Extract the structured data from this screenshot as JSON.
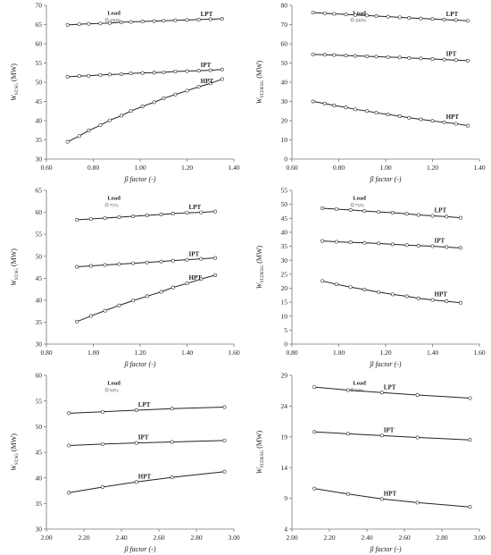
{
  "chart_data": [
    {
      "id": "p1",
      "type": "line",
      "xlabel": "β factor (-)",
      "ylabel_main": "W",
      "ylabel_sub": "ST,SG",
      "ylabel_unit": "(MW)",
      "xlim": [
        0.6,
        1.4
      ],
      "ylim": [
        30,
        70
      ],
      "xticks": [
        "0.60",
        "0.80",
        "1.00",
        "1.20",
        "1.40"
      ],
      "yticks": [
        "30",
        "35",
        "40",
        "45",
        "50",
        "55",
        "60",
        "65",
        "70"
      ],
      "legend": {
        "title": "Load",
        "value": "100%"
      },
      "series": [
        {
          "name": "LPT",
          "x": [
            0.69,
            0.74,
            0.78,
            0.83,
            0.87,
            0.92,
            0.96,
            1.01,
            1.06,
            1.1,
            1.15,
            1.2,
            1.25,
            1.3,
            1.35
          ],
          "y": [
            64.9,
            65.1,
            65.2,
            65.3,
            65.4,
            65.6,
            65.7,
            65.8,
            65.9,
            66.0,
            66.1,
            66.2,
            66.3,
            66.4,
            66.5
          ]
        },
        {
          "name": "IPT",
          "x": [
            0.69,
            0.74,
            0.78,
            0.83,
            0.87,
            0.92,
            0.96,
            1.01,
            1.06,
            1.1,
            1.15,
            1.2,
            1.25,
            1.3,
            1.35
          ],
          "y": [
            51.4,
            51.6,
            51.7,
            51.9,
            52.0,
            52.1,
            52.3,
            52.4,
            52.5,
            52.6,
            52.8,
            52.9,
            53.0,
            53.1,
            53.3
          ]
        },
        {
          "name": "HPT",
          "x": [
            0.69,
            0.74,
            0.78,
            0.83,
            0.87,
            0.92,
            0.96,
            1.01,
            1.06,
            1.1,
            1.15,
            1.2,
            1.25,
            1.3,
            1.35
          ],
          "y": [
            34.5,
            36.0,
            37.4,
            38.8,
            40.1,
            41.3,
            42.5,
            43.7,
            44.8,
            45.8,
            46.8,
            47.8,
            48.8,
            49.7,
            50.8
          ]
        }
      ]
    },
    {
      "id": "p2",
      "type": "line",
      "xlabel": "β factor (-)",
      "ylabel_main": "W",
      "ylabel_sub": "ST,DESG",
      "ylabel_unit": "(MW)",
      "xlim": [
        0.6,
        1.4
      ],
      "ylim": [
        0,
        80
      ],
      "xticks": [
        "0.60",
        "0.80",
        "1.00",
        "1.20",
        "1.40"
      ],
      "yticks": [
        "0",
        "10",
        "20",
        "30",
        "40",
        "50",
        "60",
        "70",
        "80"
      ],
      "legend": {
        "title": "Load",
        "value": "100%"
      },
      "series": [
        {
          "name": "LPT",
          "x": [
            0.69,
            0.74,
            0.78,
            0.83,
            0.87,
            0.92,
            0.96,
            1.01,
            1.06,
            1.1,
            1.15,
            1.2,
            1.25,
            1.3,
            1.35
          ],
          "y": [
            76.3,
            75.9,
            75.6,
            75.3,
            75.0,
            74.7,
            74.4,
            74.1,
            73.8,
            73.5,
            73.2,
            72.9,
            72.6,
            72.3,
            72.0
          ]
        },
        {
          "name": "IPT",
          "x": [
            0.69,
            0.74,
            0.78,
            0.83,
            0.87,
            0.92,
            0.96,
            1.01,
            1.06,
            1.1,
            1.15,
            1.2,
            1.25,
            1.3,
            1.35
          ],
          "y": [
            54.5,
            54.3,
            54.1,
            53.9,
            53.7,
            53.5,
            53.3,
            53.1,
            52.9,
            52.6,
            52.4,
            52.1,
            51.8,
            51.5,
            51.2
          ]
        },
        {
          "name": "HPT",
          "x": [
            0.69,
            0.74,
            0.78,
            0.83,
            0.87,
            0.92,
            0.96,
            1.01,
            1.06,
            1.1,
            1.15,
            1.2,
            1.25,
            1.3,
            1.35
          ],
          "y": [
            30.0,
            28.9,
            27.9,
            26.9,
            25.9,
            25.0,
            24.1,
            23.2,
            22.3,
            21.5,
            20.7,
            19.9,
            19.1,
            18.4,
            17.4
          ]
        }
      ]
    },
    {
      "id": "p3",
      "type": "line",
      "xlabel": "β factor (-)",
      "ylabel_main": "W",
      "ylabel_sub": "ST,SG",
      "ylabel_unit": "(MW)",
      "xlim": [
        0.8,
        1.6
      ],
      "ylim": [
        30,
        65
      ],
      "xticks": [
        "0.80",
        "1.00",
        "1.20",
        "1.40",
        "1.60"
      ],
      "yticks": [
        "30",
        "35",
        "40",
        "45",
        "50",
        "55",
        "60",
        "65"
      ],
      "legend": {
        "title": "Load",
        "value": "75%"
      },
      "series": [
        {
          "name": "LPT",
          "x": [
            0.93,
            0.99,
            1.05,
            1.11,
            1.17,
            1.23,
            1.29,
            1.34,
            1.4,
            1.46,
            1.52
          ],
          "y": [
            58.3,
            58.5,
            58.7,
            58.9,
            59.1,
            59.3,
            59.5,
            59.7,
            59.9,
            60.0,
            60.2
          ]
        },
        {
          "name": "IPT",
          "x": [
            0.93,
            0.99,
            1.05,
            1.11,
            1.17,
            1.23,
            1.29,
            1.34,
            1.4,
            1.46,
            1.52
          ],
          "y": [
            47.6,
            47.8,
            48.0,
            48.2,
            48.4,
            48.6,
            48.8,
            49.0,
            49.2,
            49.4,
            49.6
          ]
        },
        {
          "name": "HPT",
          "x": [
            0.93,
            0.99,
            1.05,
            1.11,
            1.17,
            1.23,
            1.29,
            1.34,
            1.4,
            1.46,
            1.52
          ],
          "y": [
            35.1,
            36.4,
            37.6,
            38.8,
            39.9,
            40.9,
            41.9,
            42.9,
            43.8,
            44.8,
            45.7
          ]
        }
      ]
    },
    {
      "id": "p4",
      "type": "line",
      "xlabel": "β factor (-)",
      "ylabel_main": "W",
      "ylabel_sub": "ST,DESG",
      "ylabel_unit": "(MW)",
      "xlim": [
        0.8,
        1.6
      ],
      "ylim": [
        0,
        55
      ],
      "xticks": [
        "0.80",
        "1.00",
        "1.20",
        "1.40",
        "1.60"
      ],
      "yticks": [
        "0",
        "5",
        "10",
        "15",
        "20",
        "25",
        "30",
        "35",
        "40",
        "45",
        "50",
        "55"
      ],
      "legend": {
        "title": "Load",
        "value": "75%"
      },
      "series": [
        {
          "name": "LPT",
          "x": [
            0.93,
            0.99,
            1.05,
            1.11,
            1.17,
            1.23,
            1.29,
            1.34,
            1.4,
            1.46,
            1.52
          ],
          "y": [
            48.6,
            48.3,
            48.0,
            47.6,
            47.3,
            47.0,
            46.6,
            46.2,
            45.9,
            45.6,
            45.2
          ]
        },
        {
          "name": "IPT",
          "x": [
            0.93,
            0.99,
            1.05,
            1.11,
            1.17,
            1.23,
            1.29,
            1.34,
            1.4,
            1.46,
            1.52
          ],
          "y": [
            36.9,
            36.6,
            36.4,
            36.2,
            36.0,
            35.7,
            35.4,
            35.2,
            35.0,
            34.7,
            34.4
          ]
        },
        {
          "name": "HPT",
          "x": [
            0.93,
            0.99,
            1.05,
            1.11,
            1.17,
            1.23,
            1.29,
            1.34,
            1.4,
            1.46,
            1.52
          ],
          "y": [
            22.6,
            21.4,
            20.4,
            19.5,
            18.6,
            17.8,
            17.1,
            16.4,
            15.8,
            15.3,
            14.8
          ]
        }
      ]
    },
    {
      "id": "p5",
      "type": "line",
      "xlabel": "β factor (-)",
      "ylabel_main": "W",
      "ylabel_sub": "ST,SG",
      "ylabel_unit": "(MW)",
      "xlim": [
        2.0,
        3.0
      ],
      "ylim": [
        30,
        60
      ],
      "xticks": [
        "2.00",
        "2.20",
        "2.40",
        "2.60",
        "2.80",
        "3.00"
      ],
      "yticks": [
        "30",
        "35",
        "40",
        "45",
        "50",
        "55",
        "60"
      ],
      "legend": {
        "title": "Load",
        "value": "50%"
      },
      "series": [
        {
          "name": "LPT",
          "x": [
            2.12,
            2.3,
            2.48,
            2.67,
            2.95
          ],
          "y": [
            52.6,
            52.9,
            53.2,
            53.5,
            53.8
          ]
        },
        {
          "name": "IPT",
          "x": [
            2.12,
            2.3,
            2.48,
            2.67,
            2.95
          ],
          "y": [
            46.3,
            46.6,
            46.8,
            47.0,
            47.3
          ]
        },
        {
          "name": "HPT",
          "x": [
            2.12,
            2.3,
            2.48,
            2.67,
            2.95
          ],
          "y": [
            37.1,
            38.2,
            39.2,
            40.1,
            41.2
          ]
        }
      ]
    },
    {
      "id": "p6",
      "type": "line",
      "xlabel": "β factor (-)",
      "ylabel_main": "W",
      "ylabel_sub": "ST,DESG",
      "ylabel_unit": "(MW)",
      "xlim": [
        2.0,
        3.0
      ],
      "ylim": [
        4,
        29
      ],
      "xticks": [
        "2.00",
        "2.20",
        "2.40",
        "2.60",
        "2.80",
        "3.00"
      ],
      "yticks": [
        "4",
        "9",
        "14",
        "19",
        "24",
        "29"
      ],
      "legend": {
        "title": "Load",
        "value": "50%"
      },
      "series": [
        {
          "name": "LPT",
          "x": [
            2.12,
            2.3,
            2.48,
            2.67,
            2.95
          ],
          "y": [
            27.1,
            26.6,
            26.2,
            25.8,
            25.3
          ]
        },
        {
          "name": "IPT",
          "x": [
            2.12,
            2.3,
            2.48,
            2.67,
            2.95
          ],
          "y": [
            19.8,
            19.5,
            19.2,
            18.9,
            18.5
          ]
        },
        {
          "name": "HPT",
          "x": [
            2.12,
            2.3,
            2.48,
            2.67,
            2.95
          ],
          "y": [
            10.6,
            9.7,
            8.9,
            8.3,
            7.6
          ]
        }
      ]
    }
  ]
}
